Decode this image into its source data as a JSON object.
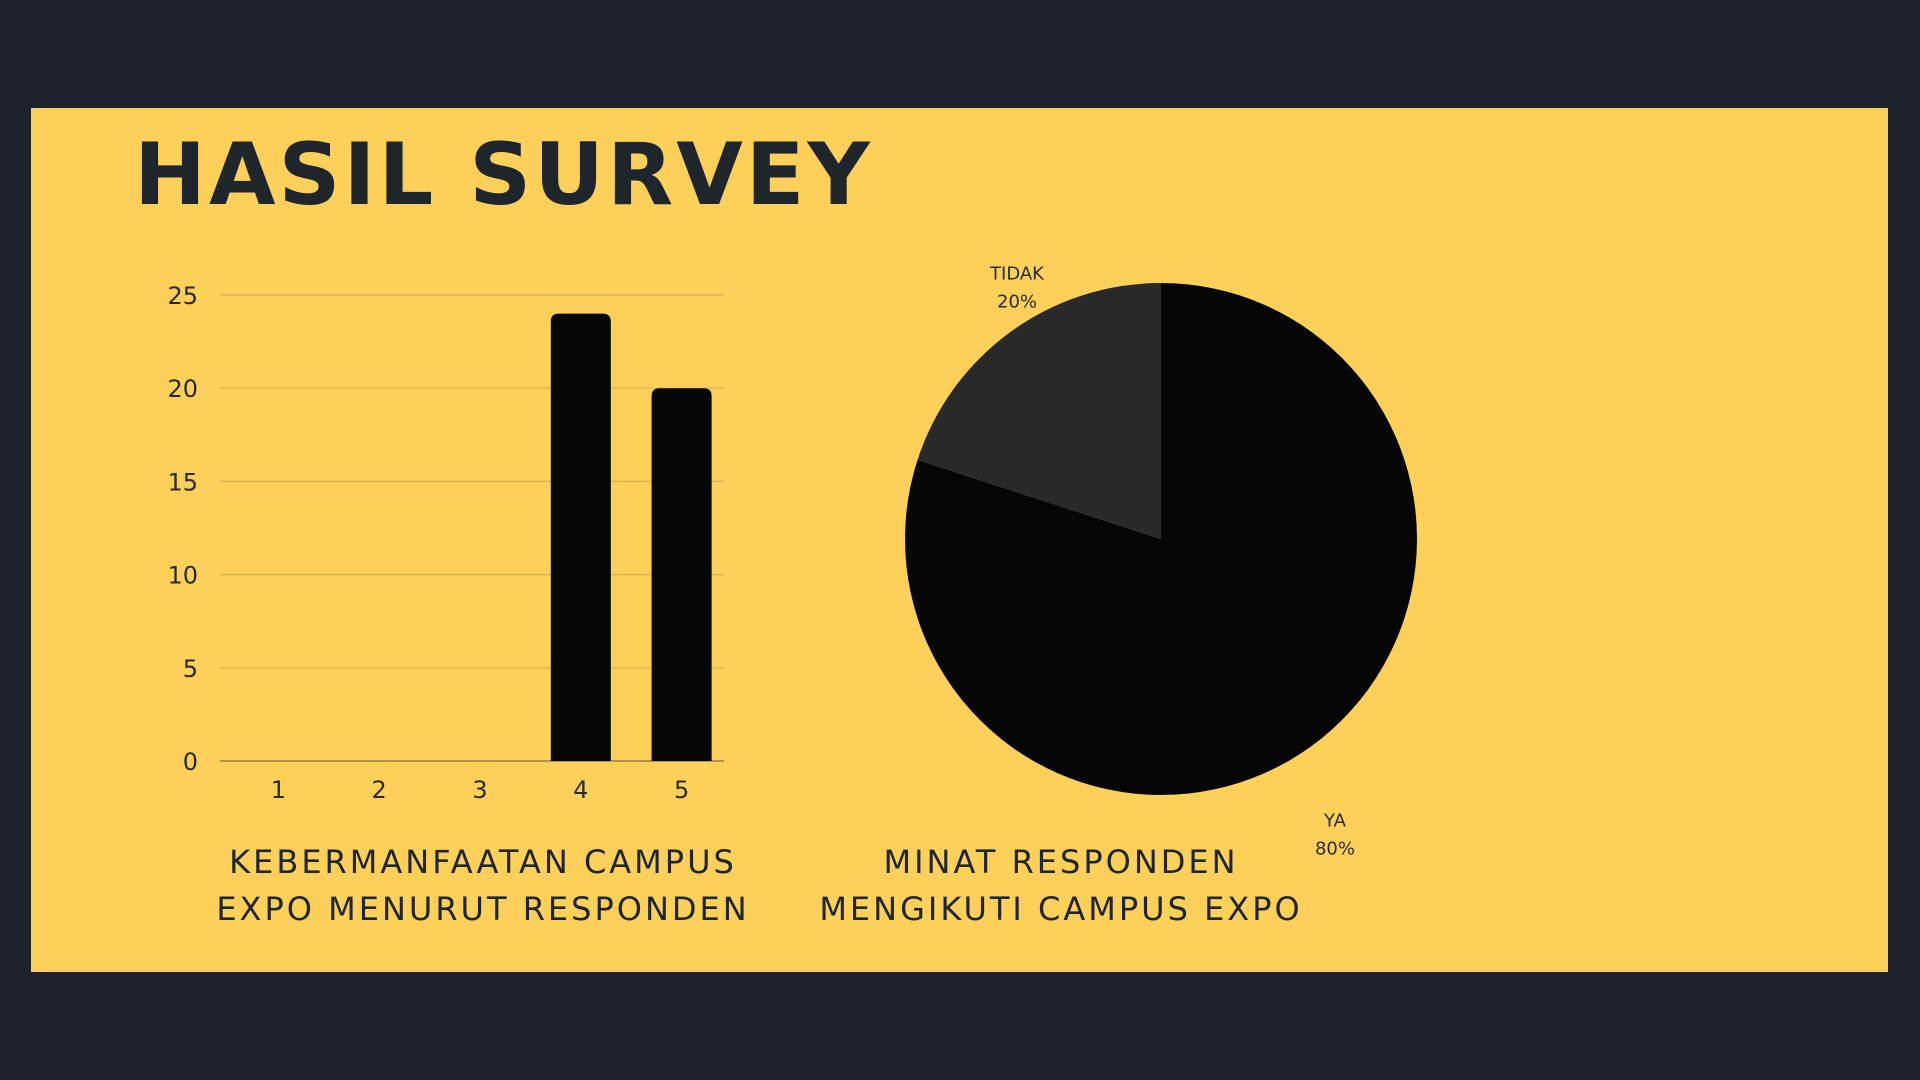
{
  "title": "HASIL SURVEY",
  "colors": {
    "background": "#1e232b",
    "panel": "#fdd05a",
    "title": "#1e252b",
    "bar": "#050605",
    "pie_ya": "#050605",
    "pie_tidak": "#282928",
    "grid": "#d8b052"
  },
  "chart_data": [
    {
      "type": "bar",
      "categories": [
        "1",
        "2",
        "3",
        "4",
        "5"
      ],
      "values": [
        0,
        0,
        0,
        24,
        20
      ],
      "yticks": [
        0,
        5,
        10,
        15,
        20,
        25
      ],
      "ylim": [
        0,
        25
      ],
      "grid": true,
      "caption_line1": "KEBERMANFAATAN CAMPUS",
      "caption_line2": "EXPO MENURUT RESPONDEN"
    },
    {
      "type": "pie",
      "slices": [
        {
          "label": "YA",
          "value": 80,
          "value_label": "80%"
        },
        {
          "label": "TIDAK",
          "value": 20,
          "value_label": "20%"
        }
      ],
      "caption_line1": "MINAT RESPONDEN",
      "caption_line2": "MENGIKUTI CAMPUS EXPO"
    }
  ]
}
